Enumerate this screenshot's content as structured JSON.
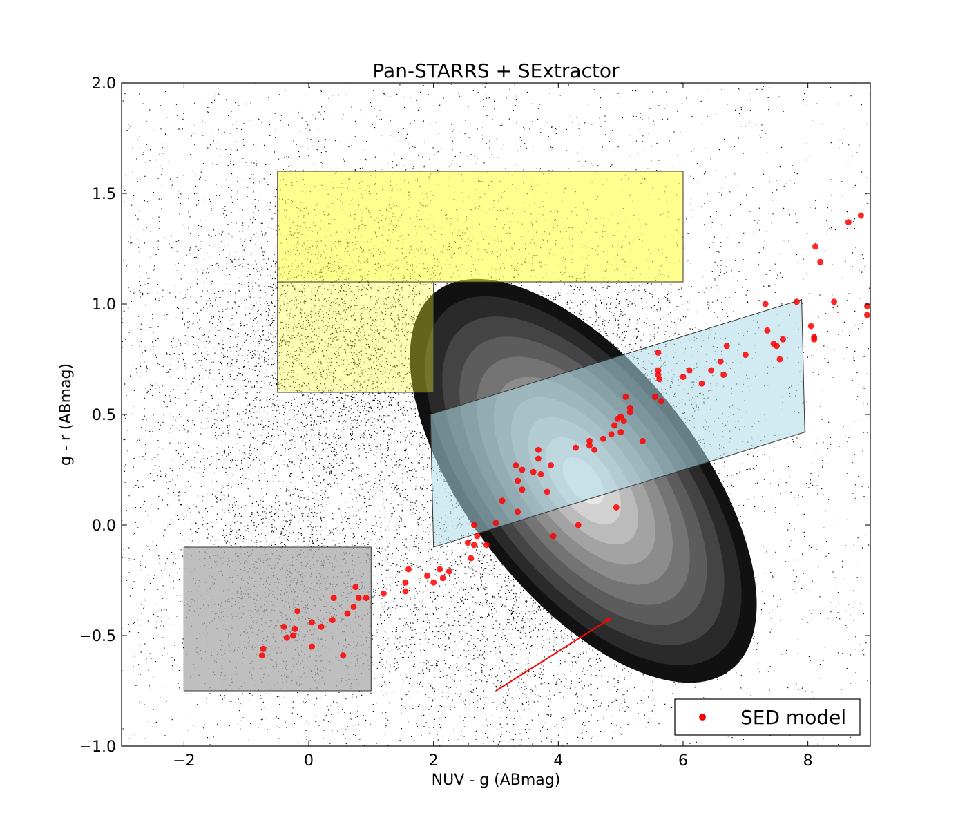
{
  "chart_data": {
    "type": "scatter",
    "title": "Pan-STARRS + SExtractor",
    "xlabel": "NUV - g (ABmag)",
    "ylabel": "g - r (ABmag)",
    "xlim": [
      -3,
      9
    ],
    "ylim": [
      -1.0,
      2.0
    ],
    "x_ticks": [
      -2,
      0,
      2,
      4,
      6,
      8
    ],
    "x_tick_labels": [
      "−2",
      "0",
      "2",
      "4",
      "6",
      "8"
    ],
    "y_ticks": [
      -1.0,
      -0.5,
      0.0,
      0.5,
      1.0,
      1.5,
      2.0
    ],
    "y_tick_labels": [
      "−1.0",
      "−0.5",
      "0.0",
      "0.5",
      "1.0",
      "1.5",
      "2.0"
    ],
    "grid": false,
    "legend": {
      "placement": "lower-right",
      "entries": [
        "SED model"
      ]
    },
    "colors": {
      "sed": "#ff0000",
      "field": "#000000",
      "yellow_region": "#ffff33",
      "blue_region": "#add8e6",
      "gray_region": "#a9a9a9",
      "arrow": "#ff0000"
    },
    "background_population": {
      "description_kind": "dense black point cloud",
      "clusters": [
        {
          "cx": 0.5,
          "cy": 0.8,
          "sx": 1.3,
          "sy": 0.35,
          "n": 3500
        },
        {
          "cx": 4.3,
          "cy": 0.35,
          "sx": 1.1,
          "sy": 0.38,
          "n": 5500
        },
        {
          "cx": -0.4,
          "cy": -0.3,
          "sx": 0.9,
          "sy": 0.25,
          "n": 1600
        },
        {
          "cx": 3.0,
          "cy": -0.5,
          "sx": 1.6,
          "sy": 0.3,
          "n": 1800
        },
        {
          "cx": 1.5,
          "cy": 0.6,
          "sx": 3.0,
          "sy": 0.7,
          "n": 4500
        }
      ]
    },
    "density_contours": {
      "center": [
        4.4,
        0.2
      ],
      "levels": [
        {
          "color": "#111111",
          "rx": 1.85,
          "ry": 0.7
        },
        {
          "color": "#2a2a2a",
          "rx": 1.68,
          "ry": 0.64
        },
        {
          "color": "#444444",
          "rx": 1.5,
          "ry": 0.57
        },
        {
          "color": "#5c5c5c",
          "rx": 1.32,
          "ry": 0.5
        },
        {
          "color": "#747474",
          "rx": 1.14,
          "ry": 0.43
        },
        {
          "color": "#8c8c8c",
          "rx": 0.96,
          "ry": 0.36
        },
        {
          "color": "#a3a3a3",
          "rx": 0.78,
          "ry": 0.29
        },
        {
          "color": "#bbbbbb",
          "rx": 0.6,
          "ry": 0.22
        },
        {
          "color": "#d2d2d2",
          "rx": 0.42,
          "ry": 0.15
        },
        {
          "color": "#e8e8e8",
          "rx": 0.24,
          "ry": 0.08
        }
      ]
    },
    "regions": [
      {
        "name": "yellow-upper",
        "color": "yellow_region",
        "opacity": 0.55,
        "points": [
          [
            -0.5,
            1.1
          ],
          [
            6.0,
            1.1
          ],
          [
            6.0,
            1.6
          ],
          [
            -0.5,
            1.6
          ]
        ]
      },
      {
        "name": "yellow-lower",
        "color": "yellow_region",
        "opacity": 0.35,
        "points": [
          [
            -0.5,
            0.6
          ],
          [
            2.0,
            0.6
          ],
          [
            2.0,
            1.1
          ],
          [
            -0.5,
            1.1
          ]
        ]
      },
      {
        "name": "blue-parallelogram",
        "color": "blue_region",
        "opacity": 0.55,
        "points": [
          [
            2.0,
            -0.1
          ],
          [
            7.95,
            0.42
          ],
          [
            7.9,
            1.02
          ],
          [
            1.95,
            0.5
          ]
        ]
      },
      {
        "name": "gray-box",
        "color": "gray_region",
        "opacity": 0.75,
        "points": [
          [
            -2.0,
            -0.75
          ],
          [
            1.0,
            -0.75
          ],
          [
            1.0,
            -0.1
          ],
          [
            -2.0,
            -0.1
          ]
        ]
      }
    ],
    "reddening_arrow": {
      "from": [
        3.0,
        -0.75
      ],
      "to": [
        4.85,
        -0.42
      ]
    },
    "series": [
      {
        "name": "SED model",
        "points": [
          [
            -0.73,
            -0.56
          ],
          [
            -0.75,
            -0.59
          ],
          [
            -0.35,
            -0.51
          ],
          [
            -0.4,
            -0.46
          ],
          [
            -0.22,
            -0.47
          ],
          [
            -0.25,
            -0.5
          ],
          [
            -0.18,
            -0.39
          ],
          [
            0.05,
            -0.44
          ],
          [
            0.2,
            -0.46
          ],
          [
            0.38,
            -0.43
          ],
          [
            0.4,
            -0.33
          ],
          [
            0.62,
            -0.4
          ],
          [
            0.72,
            -0.37
          ],
          [
            0.75,
            -0.28
          ],
          [
            0.8,
            -0.33
          ],
          [
            0.92,
            -0.33
          ],
          [
            0.05,
            -0.55
          ],
          [
            0.55,
            -0.59
          ],
          [
            1.2,
            -0.31
          ],
          [
            1.55,
            -0.26
          ],
          [
            1.55,
            -0.3
          ],
          [
            1.6,
            -0.2
          ],
          [
            1.9,
            -0.23
          ],
          [
            2.0,
            -0.26
          ],
          [
            2.1,
            -0.2
          ],
          [
            2.15,
            -0.24
          ],
          [
            2.25,
            -0.21
          ],
          [
            2.55,
            -0.08
          ],
          [
            2.6,
            -0.15
          ],
          [
            2.65,
            -0.09
          ],
          [
            2.7,
            -0.05
          ],
          [
            2.65,
            0.0
          ],
          [
            2.85,
            -0.09
          ],
          [
            3.0,
            0.01
          ],
          [
            3.1,
            0.11
          ],
          [
            3.35,
            0.2
          ],
          [
            3.35,
            0.06
          ],
          [
            3.42,
            0.16
          ],
          [
            3.32,
            0.27
          ],
          [
            3.42,
            0.25
          ],
          [
            3.6,
            0.24
          ],
          [
            3.68,
            0.3
          ],
          [
            3.68,
            0.34
          ],
          [
            3.72,
            0.23
          ],
          [
            3.82,
            0.15
          ],
          [
            3.88,
            0.27
          ],
          [
            3.92,
            -0.05
          ],
          [
            4.28,
            0.35
          ],
          [
            4.32,
            0.0
          ],
          [
            4.5,
            0.36
          ],
          [
            4.5,
            0.38
          ],
          [
            4.58,
            0.34
          ],
          [
            4.72,
            0.39
          ],
          [
            4.85,
            0.41
          ],
          [
            4.93,
            0.08
          ],
          [
            4.9,
            0.45
          ],
          [
            4.95,
            0.48
          ],
          [
            5.0,
            0.49
          ],
          [
            5.05,
            0.47
          ],
          [
            5.0,
            0.42
          ],
          [
            5.08,
            0.58
          ],
          [
            5.15,
            0.53
          ],
          [
            5.15,
            0.51
          ],
          [
            5.35,
            0.38
          ],
          [
            5.55,
            0.58
          ],
          [
            5.6,
            0.7
          ],
          [
            5.6,
            0.68
          ],
          [
            5.62,
            0.66
          ],
          [
            5.6,
            0.78
          ],
          [
            5.65,
            0.56
          ],
          [
            6.0,
            0.67
          ],
          [
            6.1,
            0.7
          ],
          [
            6.3,
            0.64
          ],
          [
            6.45,
            0.7
          ],
          [
            6.6,
            0.74
          ],
          [
            6.65,
            0.68
          ],
          [
            6.7,
            0.81
          ],
          [
            7.0,
            0.77
          ],
          [
            7.35,
            0.88
          ],
          [
            7.45,
            0.82
          ],
          [
            7.5,
            0.81
          ],
          [
            7.55,
            0.75
          ],
          [
            7.6,
            0.84
          ],
          [
            7.32,
            1.0
          ],
          [
            7.82,
            1.01
          ],
          [
            8.05,
            0.9
          ],
          [
            8.1,
            0.84
          ],
          [
            8.1,
            0.85
          ],
          [
            8.12,
            1.26
          ],
          [
            8.2,
            1.19
          ],
          [
            8.42,
            1.01
          ],
          [
            8.65,
            1.37
          ],
          [
            8.85,
            1.4
          ],
          [
            8.95,
            0.99
          ],
          [
            8.95,
            0.95
          ]
        ]
      }
    ]
  }
}
